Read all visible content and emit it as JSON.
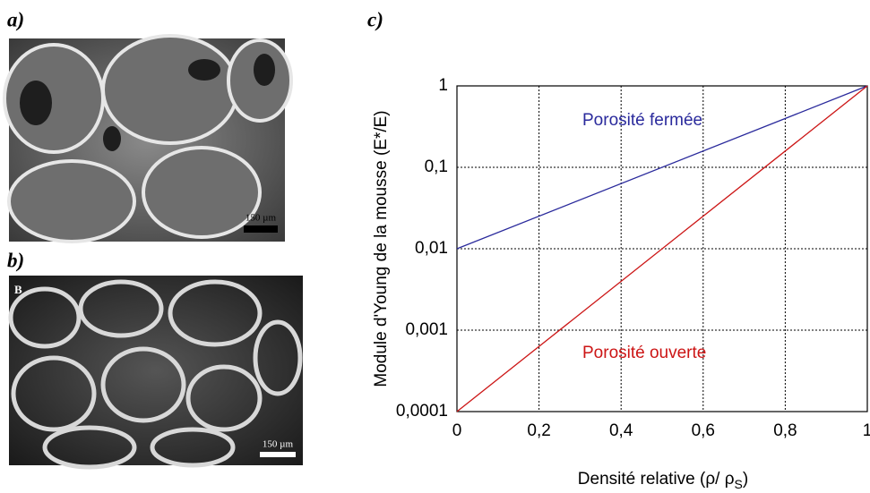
{
  "panels": [
    {
      "label": "a)",
      "scale_bar": "150 µm"
    },
    {
      "label": "b)",
      "scale_bar": "150 µm"
    }
  ],
  "chart_data": {
    "type": "line",
    "panel_label": "c)",
    "x_label": {
      "text": "Densité relative (ρ/ ρ",
      "subscript": "S",
      "end": ")"
    },
    "y_label": "Module d'Young de la mousse (E*/E)",
    "x": [
      0,
      1
    ],
    "series": [
      {
        "name": "Porosité fermée",
        "color": "#2a2a9c",
        "values": [
          0.01,
          1
        ]
      },
      {
        "name": "Porosité ouverte",
        "color": "#cc1515",
        "values": [
          0.0001,
          1
        ]
      }
    ],
    "xlim": [
      0,
      1
    ],
    "xticks": [
      0,
      {
        "value": 0.2,
        "label": "0,2"
      },
      {
        "value": 0.4,
        "label": "0,4"
      },
      {
        "value": 0.6,
        "label": "0,6"
      },
      {
        "value": 0.8,
        "label": "0,8"
      },
      1
    ],
    "ylim": [
      0.0001,
      1
    ],
    "log_y": true,
    "yticks": [
      {
        "value": 0.0001,
        "label": "0,0001"
      },
      {
        "value": 0.001,
        "label": "0,001"
      },
      {
        "value": 0.01,
        "label": "0,01"
      },
      {
        "value": 0.1,
        "label": "0,1"
      },
      1
    ],
    "grid": true
  }
}
